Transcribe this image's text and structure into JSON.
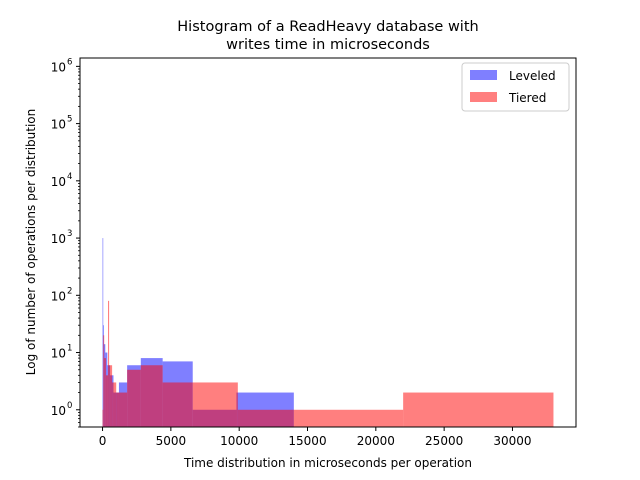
{
  "chart_data": {
    "type": "histogram",
    "title_lines": [
      "Histogram of a ReadHeavy database with",
      "writes time in microseconds"
    ],
    "xlabel": "Time distribution in microseconds per operation",
    "ylabel": "Log of number of operations per distribution",
    "xlim": [
      -1650,
      34650
    ],
    "ylim": [
      0.5,
      1400000
    ],
    "yscale": "log",
    "grid": false,
    "legend_position": "top-right",
    "x_ticks": [
      {
        "value": 0,
        "label": "0"
      },
      {
        "value": 5000,
        "label": "5000"
      },
      {
        "value": 10000,
        "label": "10000"
      },
      {
        "value": 15000,
        "label": "15000"
      },
      {
        "value": 20000,
        "label": "20000"
      },
      {
        "value": 25000,
        "label": "25000"
      },
      {
        "value": 30000,
        "label": "30000"
      }
    ],
    "y_ticks": [
      {
        "value": 1,
        "base": "10",
        "exp": "0"
      },
      {
        "value": 10,
        "base": "10",
        "exp": "1"
      },
      {
        "value": 100,
        "base": "10",
        "exp": "2"
      },
      {
        "value": 1000,
        "base": "10",
        "exp": "3"
      },
      {
        "value": 10000,
        "base": "10",
        "exp": "4"
      },
      {
        "value": 100000,
        "base": "10",
        "exp": "5"
      },
      {
        "value": 1000000,
        "base": "10",
        "exp": "6"
      }
    ],
    "series": [
      {
        "name": "Leveled",
        "color": "#0000ff",
        "alpha": 0.5,
        "bins": [
          {
            "x0": 0,
            "x1": 50,
            "count": 1000
          },
          {
            "x0": 50,
            "x1": 100,
            "count": 30
          },
          {
            "x0": 100,
            "x1": 200,
            "count": 14
          },
          {
            "x0": 200,
            "x1": 350,
            "count": 10
          },
          {
            "x0": 350,
            "x1": 550,
            "count": 6
          },
          {
            "x0": 550,
            "x1": 800,
            "count": 4
          },
          {
            "x0": 800,
            "x1": 1200,
            "count": 2
          },
          {
            "x0": 1200,
            "x1": 1800,
            "count": 3
          },
          {
            "x0": 1800,
            "x1": 2800,
            "count": 6
          },
          {
            "x0": 2800,
            "x1": 4400,
            "count": 8
          },
          {
            "x0": 4400,
            "x1": 6600,
            "count": 7
          },
          {
            "x0": 6600,
            "x1": 9800,
            "count": 1
          },
          {
            "x0": 9800,
            "x1": 14000,
            "count": 2
          }
        ]
      },
      {
        "name": "Tiered",
        "color": "#ff0000",
        "alpha": 0.5,
        "bins": [
          {
            "x0": 0,
            "x1": 50,
            "count": 1
          },
          {
            "x0": 50,
            "x1": 120,
            "count": 20
          },
          {
            "x0": 120,
            "x1": 250,
            "count": 8
          },
          {
            "x0": 250,
            "x1": 400,
            "count": 4
          },
          {
            "x0": 400,
            "x1": 480,
            "count": 80
          },
          {
            "x0": 480,
            "x1": 700,
            "count": 6
          },
          {
            "x0": 700,
            "x1": 1000,
            "count": 3
          },
          {
            "x0": 1000,
            "x1": 1800,
            "count": 2
          },
          {
            "x0": 1800,
            "x1": 2800,
            "count": 5
          },
          {
            "x0": 2800,
            "x1": 4400,
            "count": 6
          },
          {
            "x0": 4400,
            "x1": 6600,
            "count": 3
          },
          {
            "x0": 6600,
            "x1": 9900,
            "count": 3
          },
          {
            "x0": 9900,
            "x1": 14000,
            "count": 1
          },
          {
            "x0": 14000,
            "x1": 22000,
            "count": 1
          },
          {
            "x0": 22000,
            "x1": 33000,
            "count": 2
          }
        ]
      }
    ]
  }
}
